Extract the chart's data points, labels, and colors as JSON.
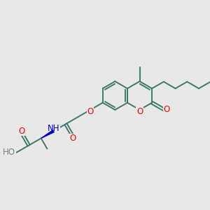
{
  "bg_color": "#e8e8e8",
  "bond_color": "#3d7a6e",
  "bond_width": 1.4,
  "atom_colors": {
    "O": "#ff0000",
    "N": "#0000cc",
    "H_gray": "#808080"
  },
  "figsize": [
    3.0,
    3.0
  ],
  "dpi": 100,
  "xlim": [
    0,
    10
  ],
  "ylim": [
    0,
    10
  ]
}
